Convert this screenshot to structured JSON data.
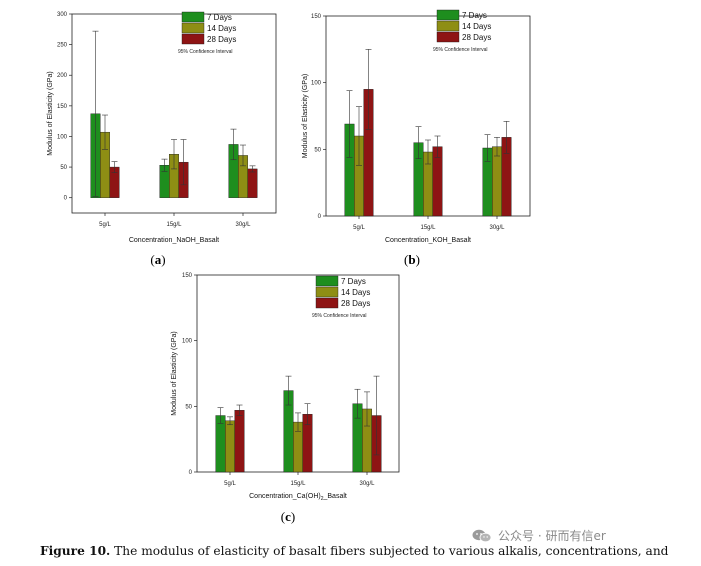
{
  "chart_data": [
    {
      "id": "a",
      "type": "bar",
      "panel_label": "a",
      "xlabel": "Concentration_NaOH_Basalt",
      "ylabel": "Modulus of Elasticity (GPa)",
      "ylim": [
        -25,
        300
      ],
      "yticks": [
        0,
        50,
        100,
        150,
        200,
        250,
        300
      ],
      "categories": [
        "5g/L",
        "15g/L",
        "30g/L"
      ],
      "series": [
        {
          "name": "7 Days",
          "values": [
            137,
            53,
            87
          ],
          "errors": [
            135,
            10,
            25
          ]
        },
        {
          "name": "14 Days",
          "values": [
            107,
            71,
            69
          ],
          "errors": [
            28,
            24,
            17
          ]
        },
        {
          "name": "28 Days",
          "values": [
            50,
            58,
            47
          ],
          "errors": [
            9,
            37,
            5
          ]
        }
      ],
      "legend_note": "95% Confidence Interval",
      "legend_position": "top-right"
    },
    {
      "id": "b",
      "type": "bar",
      "panel_label": "b",
      "xlabel": "Concentration_KOH_Basalt",
      "ylabel": "Modulus of Elasticity (GPa)",
      "ylim": [
        0,
        150
      ],
      "yticks": [
        0,
        50,
        100,
        150
      ],
      "categories": [
        "5g/L",
        "15g/L",
        "30g/L"
      ],
      "series": [
        {
          "name": "7 Days",
          "values": [
            69,
            55,
            51
          ],
          "errors": [
            25,
            12,
            10
          ]
        },
        {
          "name": "14 Days",
          "values": [
            60,
            48,
            52
          ],
          "errors": [
            22,
            9,
            7
          ]
        },
        {
          "name": "28 Days",
          "values": [
            95,
            52,
            59
          ],
          "errors": [
            30,
            8,
            12
          ]
        }
      ],
      "legend_note": "95% Confidence Interval",
      "legend_position": "top-right"
    },
    {
      "id": "c",
      "type": "bar",
      "panel_label": "c",
      "xlabel": "Concentration_Ca(OH)",
      "xlabel_sub": "2",
      "xlabel_tail": "_Basalt",
      "ylabel": "Modulus of Elasticity (GPa)",
      "ylim": [
        0,
        150
      ],
      "yticks": [
        0,
        50,
        100,
        150
      ],
      "categories": [
        "5g/L",
        "15g/L",
        "30g/L"
      ],
      "series": [
        {
          "name": "7 Days",
          "values": [
            43,
            62,
            52
          ],
          "errors": [
            6,
            11,
            11
          ]
        },
        {
          "name": "14 Days",
          "values": [
            39,
            38,
            48
          ],
          "errors": [
            3,
            7,
            13
          ]
        },
        {
          "name": "28 Days",
          "values": [
            47,
            44,
            43
          ],
          "errors": [
            4,
            8,
            30
          ]
        }
      ],
      "legend_note": "95% Confidence Interval",
      "legend_position": "top-right"
    }
  ],
  "colors": {
    "7 Days": "#1e8e1e",
    "14 Days": "#8e8e14",
    "28 Days": "#8e1414"
  },
  "caption": {
    "label": "Figure 10.",
    "text": "The modulus of elasticity of basalt fibers subjected to various alkalis, concentrations, and"
  },
  "watermark": {
    "text": "公众号 · 研而有信er",
    "icon": "wechat-icon"
  }
}
